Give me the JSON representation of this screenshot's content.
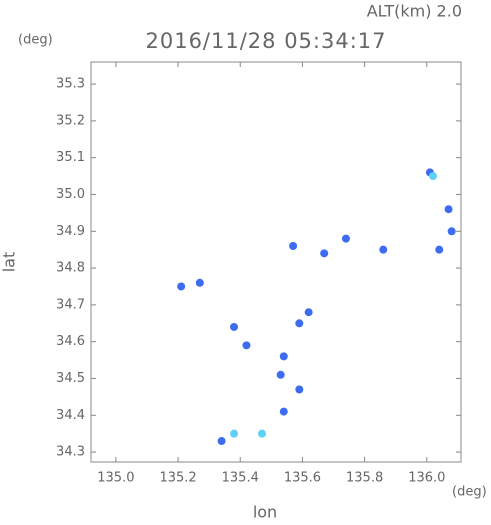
{
  "chart_data": {
    "type": "scatter",
    "title": "2016/11/28 05:34:17",
    "subtitle": "ALT(km) 2.0",
    "x_label": "lon",
    "y_label": "lat",
    "x_unit": "(deg)",
    "y_unit": "(deg)",
    "xlim": [
      134.92,
      136.11
    ],
    "ylim": [
      34.273,
      35.36
    ],
    "xticks": [
      {
        "value": 135.0,
        "label": "135.0"
      },
      135.2,
      135.4,
      135.6,
      135.8,
      {
        "value": 136.0,
        "label": "136.0"
      }
    ],
    "yticks": [
      34.3,
      34.4,
      34.5,
      34.6,
      34.7,
      34.8,
      34.9,
      {
        "value": 35.0,
        "label": "35.0"
      },
      35.1,
      35.2,
      35.3
    ],
    "x": [
      136.01,
      136.07,
      136.08,
      136.04,
      135.74,
      135.57,
      135.21,
      135.27,
      135.38,
      135.59,
      135.54,
      135.53,
      135.59,
      135.42,
      135.54,
      135.47,
      135.38,
      135.34,
      135.86,
      136.02,
      135.67,
      135.62
    ],
    "y": [
      35.06,
      34.96,
      34.9,
      34.85,
      34.88,
      34.86,
      34.75,
      34.76,
      34.64,
      34.65,
      34.56,
      34.51,
      34.47,
      34.59,
      34.41,
      34.35,
      34.35,
      34.33,
      34.85,
      35.05,
      34.84,
      34.68
    ],
    "colors": [
      "#3d6cf0",
      "#3d6cf0",
      "#3d6cf0",
      "#3d6cf0",
      "#3d6cf0",
      "#3d6cf0",
      "#3d6cf0",
      "#3d6cf0",
      "#3d6cf0",
      "#3d6cf0",
      "#3d6cf0",
      "#3d6cf0",
      "#3d6cf0",
      "#3d6cf0",
      "#3d6cf0",
      "#5fd0f5",
      "#5fd0f5",
      "#3d6cf0",
      "#3d6cf0",
      "#5fd0f5",
      "#3d6cf0",
      "#3d6cf0"
    ],
    "grid": false
  }
}
